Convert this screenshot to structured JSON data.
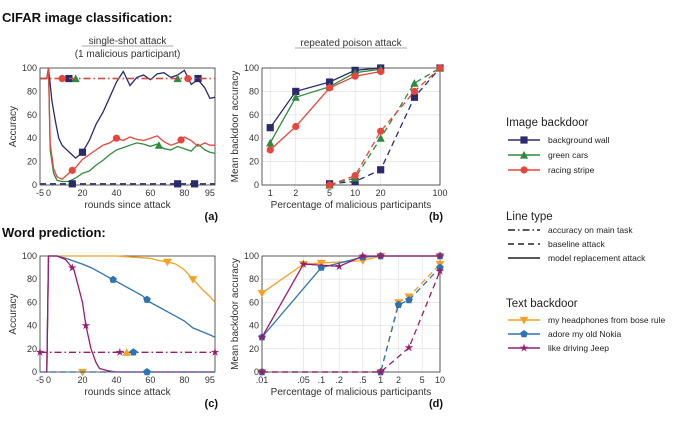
{
  "headings": {
    "cifar": "CIFAR image classification:",
    "word": "Word prediction:"
  },
  "colors": {
    "background_wall": "#2b2a6b",
    "green_cars": "#2e8b3e",
    "racing_stripe": "#e8453c",
    "headphones": "#f4a124",
    "nokia": "#2e74b5",
    "jeep": "#9b1b6e"
  },
  "legend": {
    "image_title": "Image backdoor",
    "image_items": [
      "background wall",
      "green cars",
      "racing stripe"
    ],
    "line_title": "Line type",
    "line_items": [
      "accuracy on main task",
      "baseline attack",
      "model replacement attack"
    ],
    "text_title": "Text backdoor",
    "text_items": [
      "my headphones from bose rule",
      "adore my old Nokia",
      "like driving Jeep"
    ]
  },
  "chart_data": [
    {
      "id": "a",
      "type": "line",
      "title": "single-shot attack",
      "subtitle": "(1 malicious participant)",
      "panel_label": "(a)",
      "xlabel": "rounds since attack",
      "ylabel": "Accuracy",
      "xlim": [
        -5,
        98
      ],
      "ylim": [
        0,
        100
      ],
      "xticks": [
        -5,
        0,
        20,
        40,
        60,
        80,
        95
      ],
      "yticks": [
        0,
        20,
        40,
        60,
        80,
        100
      ],
      "grid": false,
      "series": [
        {
          "name": "background wall",
          "color_key": "background_wall",
          "dash": "solid",
          "x": [
            -5,
            -1,
            0,
            2,
            4,
            6,
            8,
            10,
            13,
            16,
            20,
            24,
            28,
            32,
            36,
            40,
            44,
            48,
            52,
            56,
            60,
            64,
            68,
            72,
            76,
            80,
            84,
            88,
            92,
            95,
            98
          ],
          "y": [
            91,
            91,
            100,
            72,
            55,
            40,
            34,
            31,
            27,
            23,
            28,
            38,
            52,
            62,
            75,
            88,
            97,
            85,
            92,
            94,
            90,
            95,
            96,
            92,
            94,
            98,
            86,
            90,
            83,
            74,
            75
          ],
          "markers": [
            20
          ]
        },
        {
          "name": "green cars",
          "color_key": "green_cars",
          "dash": "solid",
          "x": [
            -5,
            -1,
            0,
            1,
            3,
            5,
            8,
            12,
            16,
            20,
            24,
            28,
            32,
            36,
            40,
            44,
            48,
            52,
            56,
            60,
            64,
            68,
            72,
            76,
            80,
            84,
            88,
            92,
            95,
            98
          ],
          "y": [
            91,
            91,
            100,
            30,
            10,
            4,
            3,
            3,
            6,
            10,
            12,
            17,
            21,
            26,
            30,
            32,
            34,
            36,
            35,
            33,
            35,
            31,
            30,
            33,
            31,
            29,
            35,
            30,
            28,
            27
          ],
          "markers": [
            65
          ]
        },
        {
          "name": "racing stripe",
          "color_key": "racing_stripe",
          "dash": "solid",
          "x": [
            -5,
            -1,
            0,
            1,
            3,
            5,
            8,
            12,
            16,
            20,
            24,
            28,
            32,
            36,
            40,
            44,
            48,
            52,
            56,
            60,
            64,
            68,
            72,
            76,
            80,
            84,
            88,
            92,
            95,
            98
          ],
          "y": [
            91,
            91,
            100,
            35,
            14,
            7,
            5,
            10,
            15,
            22,
            26,
            30,
            34,
            36,
            40,
            38,
            41,
            39,
            38,
            40,
            42,
            37,
            34,
            36,
            41,
            38,
            33,
            36,
            34,
            34
          ],
          "markers": [
            14,
            40,
            78
          ]
        },
        {
          "name": "background wall",
          "color_key": "background_wall",
          "dash": "dashdot",
          "x": [
            -5,
            98
          ],
          "y": [
            91,
            91
          ],
          "markers": [
            12,
            88
          ]
        },
        {
          "name": "green cars",
          "color_key": "green_cars",
          "dash": "dashdot",
          "x": [
            -5,
            98
          ],
          "y": [
            91,
            91
          ],
          "markers": [
            16,
            76
          ]
        },
        {
          "name": "racing stripe",
          "color_key": "racing_stripe",
          "dash": "dashdot",
          "x": [
            -5,
            98
          ],
          "y": [
            91,
            91
          ],
          "markers": [
            8,
            82
          ]
        },
        {
          "name": "background wall",
          "color_key": "background_wall",
          "dash": "dashed",
          "x": [
            -5,
            98
          ],
          "y": [
            1,
            1
          ],
          "markers": [
            14,
            76,
            86
          ]
        }
      ]
    },
    {
      "id": "b",
      "type": "line",
      "title": "repeated poison attack",
      "panel_label": "(b)",
      "xlabel": "Percentage of malicious participants",
      "ylabel": "Mean backdoor accuracy",
      "xscale": "log",
      "xlim": [
        0.8,
        100
      ],
      "ylim": [
        0,
        100
      ],
      "xticks": [
        1,
        2,
        5,
        10,
        20,
        100
      ],
      "yticks": [
        0,
        20,
        40,
        60,
        80,
        100
      ],
      "grid": true,
      "series": [
        {
          "name": "background wall",
          "color_key": "background_wall",
          "dash": "solid",
          "x": [
            1,
            2,
            5,
            10,
            20
          ],
          "y": [
            49,
            80,
            88,
            98,
            100
          ]
        },
        {
          "name": "green cars",
          "color_key": "green_cars",
          "dash": "solid",
          "x": [
            1,
            2,
            5,
            10,
            20
          ],
          "y": [
            36,
            75,
            84,
            96,
            99
          ]
        },
        {
          "name": "racing stripe",
          "color_key": "racing_stripe",
          "dash": "solid",
          "x": [
            1,
            2,
            5,
            10,
            20
          ],
          "y": [
            30,
            50,
            83,
            93,
            97
          ]
        },
        {
          "name": "background wall",
          "color_key": "background_wall",
          "dash": "dashed",
          "x": [
            5,
            10,
            20,
            50,
            100
          ],
          "y": [
            1,
            3,
            13,
            75,
            100
          ]
        },
        {
          "name": "green cars",
          "color_key": "green_cars",
          "dash": "dashed",
          "x": [
            5,
            10,
            20,
            50,
            100
          ],
          "y": [
            0,
            6,
            40,
            87,
            100
          ]
        },
        {
          "name": "racing stripe",
          "color_key": "racing_stripe",
          "dash": "dashed",
          "x": [
            5,
            10,
            20,
            50,
            100
          ],
          "y": [
            0,
            8,
            46,
            80,
            100
          ]
        }
      ]
    },
    {
      "id": "c",
      "type": "line",
      "panel_label": "(c)",
      "xlabel": "rounds since attack",
      "ylabel": "Accuracy",
      "xlim": [
        -5,
        98
      ],
      "ylim": [
        0,
        100
      ],
      "xticks": [
        -5,
        0,
        20,
        40,
        60,
        80,
        95
      ],
      "yticks": [
        0,
        20,
        40,
        60,
        80,
        100
      ],
      "grid": false,
      "series": [
        {
          "name": "my headphones from bose rule",
          "color_key": "headphones",
          "dash": "solid",
          "x": [
            -1,
            0,
            5,
            10,
            20,
            30,
            40,
            50,
            60,
            65,
            70,
            75,
            80,
            85,
            90,
            95,
            98
          ],
          "y": [
            0,
            100,
            100,
            100,
            100,
            100,
            100,
            99,
            98,
            96,
            95,
            93,
            88,
            80,
            72,
            65,
            60
          ],
          "markers": [
            70,
            85
          ]
        },
        {
          "name": "adore my old Nokia",
          "color_key": "nokia",
          "dash": "solid",
          "x": [
            -1,
            0,
            5,
            10,
            20,
            25,
            30,
            35,
            40,
            45,
            50,
            55,
            60,
            65,
            70,
            75,
            80,
            85,
            90,
            95,
            98
          ],
          "y": [
            0,
            100,
            100,
            98,
            93,
            90,
            86,
            82,
            78,
            74,
            70,
            66,
            60,
            56,
            52,
            48,
            44,
            38,
            35,
            32,
            30
          ],
          "markers": [
            38,
            58
          ]
        },
        {
          "name": "like driving Jeep",
          "color_key": "jeep",
          "dash": "solid",
          "x": [
            -2,
            -1,
            0,
            5,
            10,
            15,
            20,
            22,
            25,
            28,
            30,
            35,
            40,
            98
          ],
          "y": [
            0,
            0,
            100,
            100,
            97,
            88,
            60,
            40,
            20,
            8,
            3,
            1,
            0,
            0
          ],
          "markers": [
            14,
            22
          ]
        },
        {
          "name": "accuracy on main task",
          "color_key": "jeep",
          "dash": "dashdot",
          "x": [
            -5,
            98
          ],
          "y": [
            17,
            17
          ]
        },
        {
          "name": "my headphones from bose rule",
          "color_key": "headphones",
          "dash": "dashed",
          "x": [
            -5,
            98
          ],
          "y": [
            0,
            0
          ],
          "markers": [
            20
          ]
        },
        {
          "name": "adore my old Nokia",
          "color_key": "nokia",
          "dash": "dashed",
          "x": [
            -5,
            98
          ],
          "y": [
            0,
            0
          ],
          "markers": [
            58
          ]
        }
      ],
      "extra_markers": [
        {
          "color_key": "jeep",
          "x": 42,
          "y": 17,
          "shape": "star"
        },
        {
          "color_key": "headphones",
          "x": 46,
          "y": 17,
          "shape": "tri"
        },
        {
          "color_key": "nokia",
          "x": 50,
          "y": 17,
          "shape": "pent"
        }
      ]
    },
    {
      "id": "d",
      "type": "line",
      "panel_label": "(d)",
      "xlabel": "Percentage of malicious participants",
      "ylabel": "Mean backdoor accuracy",
      "xscale": "log",
      "xlim": [
        0.01,
        10
      ],
      "ylim": [
        0,
        100
      ],
      "xticks": [
        0.01,
        0.05,
        0.1,
        0.2,
        0.5,
        1,
        2,
        5,
        10
      ],
      "xticklabels": [
        ".01",
        ".05",
        ".1",
        ".2",
        ".5",
        "1",
        "2",
        "5",
        "10"
      ],
      "yticks": [
        0,
        20,
        40,
        60,
        80,
        100
      ],
      "grid": true,
      "series": [
        {
          "name": "my headphones from bose rule",
          "color_key": "headphones",
          "dash": "solid",
          "x": [
            0.01,
            0.05,
            0.1,
            0.5,
            1,
            10
          ],
          "y": [
            68,
            93,
            94,
            96,
            100,
            100
          ]
        },
        {
          "name": "adore my old Nokia",
          "color_key": "nokia",
          "dash": "solid",
          "x": [
            0.01,
            0.1,
            0.5,
            1,
            10
          ],
          "y": [
            30,
            90,
            99,
            100,
            100
          ]
        },
        {
          "name": "like driving Jeep",
          "color_key": "jeep",
          "dash": "solid",
          "x": [
            0.01,
            0.05,
            0.2,
            0.5,
            1,
            10
          ],
          "y": [
            30,
            93,
            91,
            100,
            100,
            100
          ]
        },
        {
          "name": "my headphones from bose rule",
          "color_key": "headphones",
          "dash": "dashed",
          "x": [
            0.01,
            1,
            2,
            3,
            10
          ],
          "y": [
            0,
            0,
            60,
            65,
            93
          ]
        },
        {
          "name": "adore my old Nokia",
          "color_key": "nokia",
          "dash": "dashed",
          "x": [
            0.01,
            1,
            2,
            3,
            10
          ],
          "y": [
            0,
            0,
            58,
            62,
            90
          ]
        },
        {
          "name": "like driving Jeep",
          "color_key": "jeep",
          "dash": "dashed",
          "x": [
            0.01,
            1,
            3,
            10
          ],
          "y": [
            0,
            0,
            21,
            87
          ]
        }
      ]
    }
  ]
}
